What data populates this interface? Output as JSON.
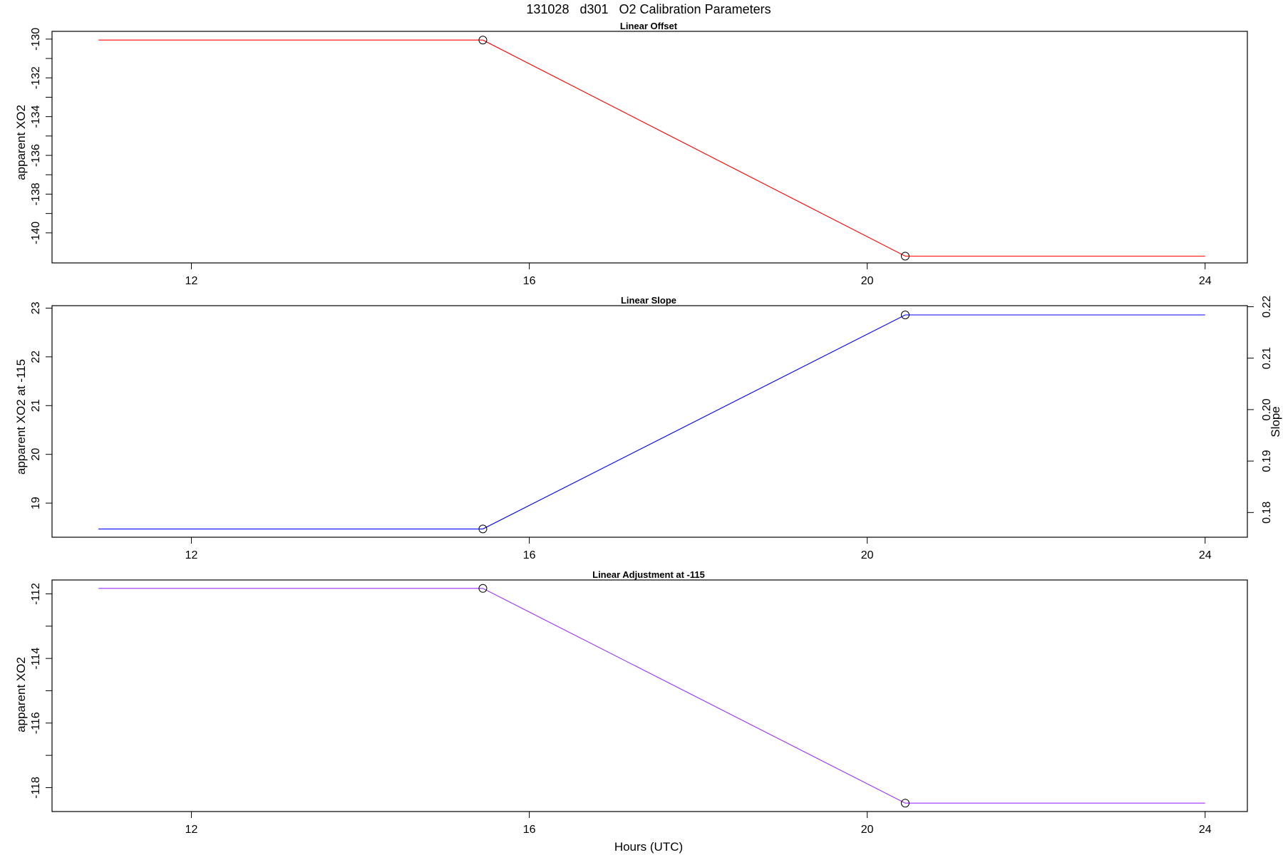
{
  "figure": {
    "title": "131028   d301   O2 Calibration Parameters",
    "xlabel": "Hours (UTC)"
  },
  "chart_data": [
    {
      "type": "line",
      "title": "Linear Offset",
      "xlabel": "",
      "ylabel": "apparent XO2",
      "color": "#ff0000",
      "xlim": [
        10.35,
        24.5
      ],
      "ylim": [
        -141.55,
        -129.6
      ],
      "xticks": [
        12,
        16,
        20,
        24
      ],
      "xtick_labels": [
        "12",
        "16",
        "20",
        "24"
      ],
      "yticks": [
        -140,
        -139,
        -138,
        -137,
        -136,
        -135,
        -134,
        -133,
        -132,
        -131,
        -130
      ],
      "ytick_labels": [
        "-140",
        "",
        "-138",
        "",
        "-136",
        "",
        "-134",
        "",
        "-132",
        "",
        "-130"
      ],
      "series": [
        {
          "x": [
            10.9,
            15.45,
            20.45,
            24.0
          ],
          "y": [
            -130.05,
            -130.05,
            -141.2,
            -141.2
          ],
          "markers": [
            1,
            2
          ]
        }
      ]
    },
    {
      "type": "line",
      "title": "Linear Slope",
      "xlabel": "",
      "ylabel": "apparent XO2 at -115",
      "y2label": "Slope",
      "color": "#0000ff",
      "xlim": [
        10.35,
        24.5
      ],
      "ylim": [
        18.3,
        23.05
      ],
      "xticks": [
        12,
        16,
        20,
        24
      ],
      "xtick_labels": [
        "12",
        "16",
        "20",
        "24"
      ],
      "yticks": [
        19,
        20,
        21,
        22,
        23
      ],
      "ytick_labels": [
        "19",
        "20",
        "21",
        "22",
        "23"
      ],
      "y2lim": [
        0.1752,
        0.2202
      ],
      "y2ticks": [
        0.18,
        0.19,
        0.2,
        0.21,
        0.22
      ],
      "y2tick_labels": [
        "0.18",
        "0.19",
        "0.20",
        "0.21",
        "0.22"
      ],
      "series": [
        {
          "x": [
            10.9,
            15.45,
            20.45,
            24.0
          ],
          "y": [
            18.47,
            18.47,
            22.86,
            22.86
          ],
          "markers": [
            1,
            2
          ]
        }
      ]
    },
    {
      "type": "line",
      "title": "Linear Adjustment at -115",
      "xlabel": "Hours (UTC)",
      "ylabel": "apparent XO2",
      "color": "#9b30ff",
      "xlim": [
        10.35,
        24.5
      ],
      "ylim": [
        -118.74,
        -111.57
      ],
      "xticks": [
        12,
        16,
        20,
        24
      ],
      "xtick_labels": [
        "12",
        "16",
        "20",
        "24"
      ],
      "yticks": [
        -118,
        -117,
        -116,
        -115,
        -114,
        -113,
        -112
      ],
      "ytick_labels": [
        "-118",
        "",
        "-116",
        "",
        "-114",
        "",
        "-112"
      ],
      "series": [
        {
          "x": [
            10.9,
            15.45,
            20.45,
            24.0
          ],
          "y": [
            -111.83,
            -111.83,
            -118.48,
            -118.48
          ],
          "markers": [
            1,
            2
          ]
        }
      ]
    }
  ]
}
